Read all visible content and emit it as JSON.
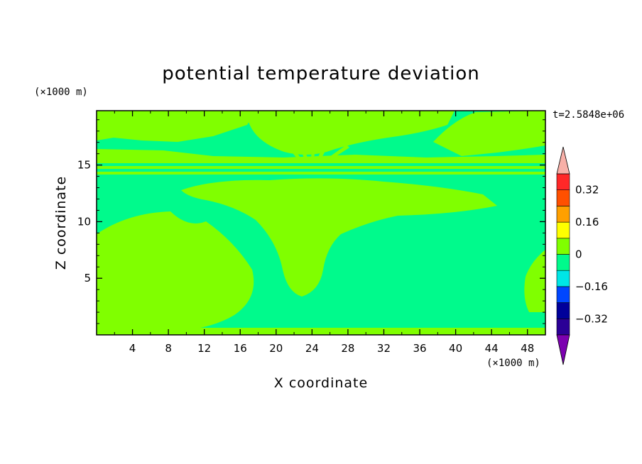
{
  "chart_data": {
    "type": "heatmap",
    "title": "potential temperature deviation",
    "xlabel": "X coordinate",
    "ylabel": "Z coordinate",
    "x_unit": "(×1000 m)",
    "y_unit": "(×1000 m)",
    "time_label": "t=2.5848e+06",
    "xlim": [
      0,
      50
    ],
    "ylim": [
      0,
      19.8
    ],
    "x_ticks": [
      4,
      8,
      12,
      16,
      20,
      24,
      28,
      32,
      36,
      40,
      44,
      48
    ],
    "y_ticks": [
      5,
      10,
      15
    ],
    "colorbar": {
      "levels": [
        -0.4,
        -0.32,
        -0.24,
        -0.16,
        -0.08,
        0,
        0.08,
        0.16,
        0.24,
        0.32,
        0.4
      ],
      "colors": [
        "#2b0096",
        "#00009a",
        "#0046ff",
        "#00e6e6",
        "#00fa8c",
        "#80ff00",
        "#ffff00",
        "#ffa000",
        "#ff5000",
        "#ff2828"
      ],
      "under_color": "#7c00b0",
      "over_color": "#f8b0a8",
      "tick_labels": [
        "-0.32",
        "-0.16",
        "0",
        "0.16",
        "0.32"
      ]
    },
    "dominant_bands": {
      "positive_small": "0 to 0.08",
      "negative_small": "-0.08 to 0"
    }
  }
}
